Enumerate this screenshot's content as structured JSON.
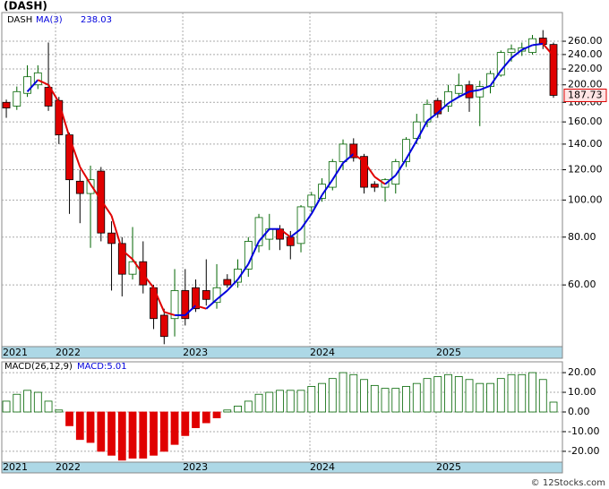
{
  "chart_data": {
    "type": "candlestick",
    "title": "(DASH)",
    "ticker": "DASH",
    "footer": "© 12Stocks.com",
    "categories": [
      null,
      null,
      null,
      null,
      null,
      null,
      null,
      null,
      null,
      null,
      null,
      null,
      null,
      null,
      null,
      null,
      null,
      null,
      null,
      null,
      null,
      null,
      null,
      null,
      null,
      null,
      null,
      null,
      null,
      null,
      null,
      null,
      null,
      null,
      null,
      null,
      null,
      null,
      null,
      null,
      null,
      null,
      null,
      null,
      null,
      null,
      null,
      null,
      null,
      null,
      null,
      null,
      null
    ],
    "xlim": [
      -0.43,
      52.85
    ],
    "xticks": [
      {
        "value": -0.43,
        "label": "2021"
      },
      {
        "value": 4.68,
        "label": "2022"
      },
      {
        "value": 16.77,
        "label": "2023"
      },
      {
        "value": 28.85,
        "label": "2024"
      },
      {
        "value": 40.85,
        "label": "2025"
      }
    ],
    "log_scale": true,
    "grid": true,
    "ylim": [
      41.4,
      309
    ],
    "yticks": [
      {
        "value": 60,
        "label": "60.00"
      },
      {
        "value": 80,
        "label": "80.00"
      },
      {
        "value": 100,
        "label": "100.00"
      },
      {
        "value": 120,
        "label": "120.00"
      },
      {
        "value": 140,
        "label": "140.00"
      },
      {
        "value": 160,
        "label": "160.00"
      },
      {
        "value": 180,
        "label": "180.00"
      },
      {
        "value": 200,
        "label": "200.00"
      },
      {
        "value": 220,
        "label": "220.00"
      },
      {
        "value": 240,
        "label": "240.00"
      },
      {
        "value": 260,
        "label": "260.00"
      }
    ],
    "up_color": "#006400",
    "down_color": "#e00000",
    "open": [
      180,
      176,
      190,
      200,
      197,
      182,
      148,
      112,
      104,
      119,
      82,
      77,
      64,
      69,
      59,
      50,
      49,
      58,
      59,
      58,
      54,
      62,
      61,
      66,
      76,
      79,
      84,
      80,
      77,
      96,
      101,
      108,
      126,
      140,
      130,
      110,
      108,
      110,
      126,
      145,
      160,
      182,
      176,
      190,
      200,
      186,
      198,
      212,
      243,
      245,
      243,
      265,
      255
    ],
    "high": [
      183,
      198,
      225,
      225,
      258,
      186,
      150,
      120,
      123,
      122,
      88,
      80,
      85,
      78,
      60,
      52,
      66,
      66,
      62,
      70,
      68,
      64,
      70,
      80,
      92,
      92,
      86,
      83,
      97,
      105,
      114,
      128,
      144,
      145,
      132,
      112,
      114,
      128,
      146,
      168,
      183,
      185,
      200,
      214,
      205,
      205,
      218,
      246,
      255,
      258,
      270,
      278,
      258
    ],
    "low": [
      164,
      172,
      186,
      195,
      171,
      140,
      92,
      87,
      75,
      78,
      58,
      56,
      62,
      57,
      46,
      42,
      44,
      47,
      51,
      53,
      52,
      59,
      59,
      63,
      73,
      74,
      74,
      70,
      73,
      93,
      99,
      106,
      120,
      126,
      104,
      105,
      99,
      104,
      122,
      140,
      155,
      164,
      170,
      185,
      170,
      156,
      190,
      210,
      230,
      238,
      240,
      248,
      185
    ],
    "close": [
      174,
      192,
      210,
      215,
      176,
      148,
      113,
      104,
      113,
      82,
      77,
      64,
      69,
      60,
      49,
      44,
      58,
      49,
      52,
      55,
      59,
      60,
      66,
      78,
      90,
      84,
      79,
      76,
      96,
      103,
      110,
      126,
      140,
      129,
      108,
      108,
      113,
      126,
      144,
      160,
      178,
      168,
      192,
      199,
      185,
      198,
      214,
      243,
      248,
      250,
      264,
      255,
      187.73
    ],
    "ma": {
      "name": "MA(3)",
      "up_color": "#0000dd",
      "down_color": "#e00000",
      "values": [
        null,
        null,
        192,
        206,
        200,
        180,
        146,
        122,
        110,
        100,
        91,
        74,
        70,
        64,
        59,
        51,
        50,
        50,
        53,
        52,
        55,
        58,
        62,
        68,
        78,
        84,
        84,
        80,
        84,
        92,
        103,
        113,
        125,
        132,
        126,
        115,
        110,
        116,
        128,
        143,
        161,
        169,
        179,
        186,
        192,
        194,
        199,
        218,
        235,
        247,
        254,
        256,
        238.03
      ]
    },
    "macd": {
      "type": "bar",
      "name": "MACD(26,12,9)",
      "current_label": "MACD:5.01",
      "ylim": [
        -25.5,
        25.5
      ],
      "yticks": [
        {
          "value": 20,
          "label": "20.00"
        },
        {
          "value": 10,
          "label": "10.00"
        },
        {
          "value": 0,
          "label": "0.00"
        },
        {
          "value": -10,
          "label": "-10.00"
        },
        {
          "value": -20,
          "label": "-20.00"
        }
      ],
      "values": [
        5.5,
        9,
        11,
        10,
        5.5,
        1,
        -7,
        -14,
        -15.5,
        -20,
        -22,
        -24.5,
        -23.5,
        -23.5,
        -22,
        -20,
        -16.5,
        -12,
        -8,
        -5.5,
        -3,
        1,
        3,
        5.5,
        9,
        10,
        11,
        11,
        11,
        13,
        14.5,
        17,
        20,
        19,
        16.5,
        13.5,
        12,
        12,
        13,
        14.5,
        17,
        18,
        19,
        18,
        16.5,
        14.5,
        14.5,
        17,
        19,
        19,
        20,
        16.5,
        5.01
      ]
    }
  }
}
